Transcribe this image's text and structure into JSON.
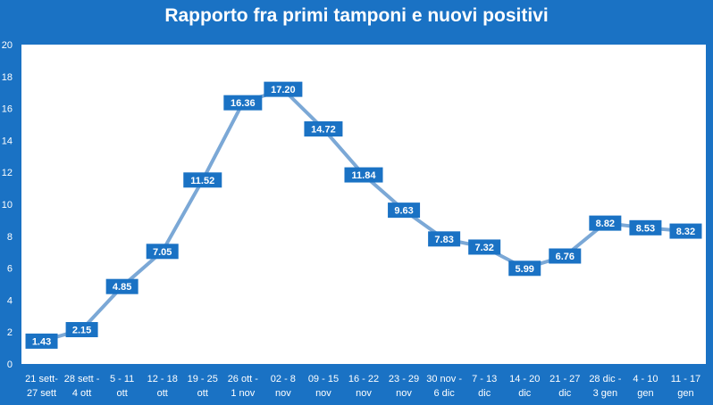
{
  "colors": {
    "background": "#1a72c4",
    "plot_area": "#ffffff",
    "line": "#7ba8d6",
    "label_box": "#1a72c4",
    "text": "#ffffff"
  },
  "chart_data": {
    "type": "line",
    "title": "Rapporto fra primi tamponi e nuovi positivi",
    "xlabel": "",
    "ylabel": "",
    "ylim": [
      0,
      20
    ],
    "yticks": [
      0,
      2,
      4,
      6,
      8,
      10,
      12,
      14,
      16,
      18,
      20
    ],
    "grid": false,
    "categories": [
      [
        "21 sett-",
        "27 sett"
      ],
      [
        "28 sett -",
        "4 ott"
      ],
      [
        "5 - 11",
        "ott"
      ],
      [
        "12 - 18",
        "ott"
      ],
      [
        "19 - 25",
        "ott"
      ],
      [
        "26 ott -",
        "1 nov"
      ],
      [
        "02 - 8",
        "nov"
      ],
      [
        "09 - 15",
        "nov"
      ],
      [
        "16 - 22",
        "nov"
      ],
      [
        "23 - 29",
        "nov"
      ],
      [
        "30 nov -",
        "6 dic"
      ],
      [
        "7 - 13",
        "dic"
      ],
      [
        "14 - 20",
        "dic"
      ],
      [
        "21 - 27",
        "dic"
      ],
      [
        "28 dic -",
        "3 gen"
      ],
      [
        "4 - 10",
        "gen"
      ],
      [
        "11 - 17",
        "gen"
      ]
    ],
    "values": [
      1.43,
      2.15,
      4.85,
      7.05,
      11.52,
      16.36,
      17.2,
      14.72,
      11.84,
      9.63,
      7.83,
      7.32,
      5.99,
      6.76,
      8.82,
      8.53,
      8.32
    ],
    "value_labels": [
      "1.43",
      "2.15",
      "4.85",
      "7.05",
      "11.52",
      "16.36",
      "17.20",
      "14.72",
      "11.84",
      "9.63",
      "7.83",
      "7.32",
      "5.99",
      "6.76",
      "8.82",
      "8.53",
      "8.32"
    ]
  }
}
